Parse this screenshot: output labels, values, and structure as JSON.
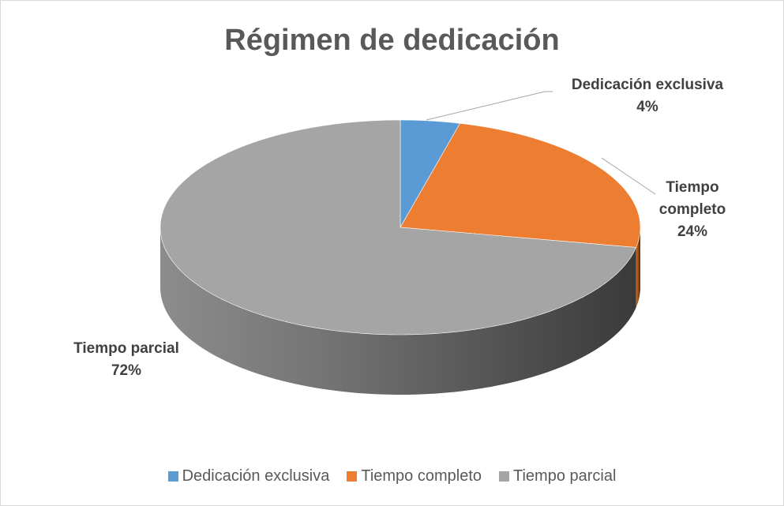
{
  "chart_data": {
    "type": "pie3d",
    "title": "Régimen de dedicación",
    "categories": [
      "Dedicación exclusiva",
      "Tiempo completo",
      "Tiempo parcial"
    ],
    "values": [
      4,
      24,
      72
    ],
    "value_labels": [
      "4%",
      "24%",
      "72%"
    ],
    "colors": [
      "#5b9bd5",
      "#ed7d31",
      "#a5a5a5"
    ],
    "legend": "bottom"
  }
}
